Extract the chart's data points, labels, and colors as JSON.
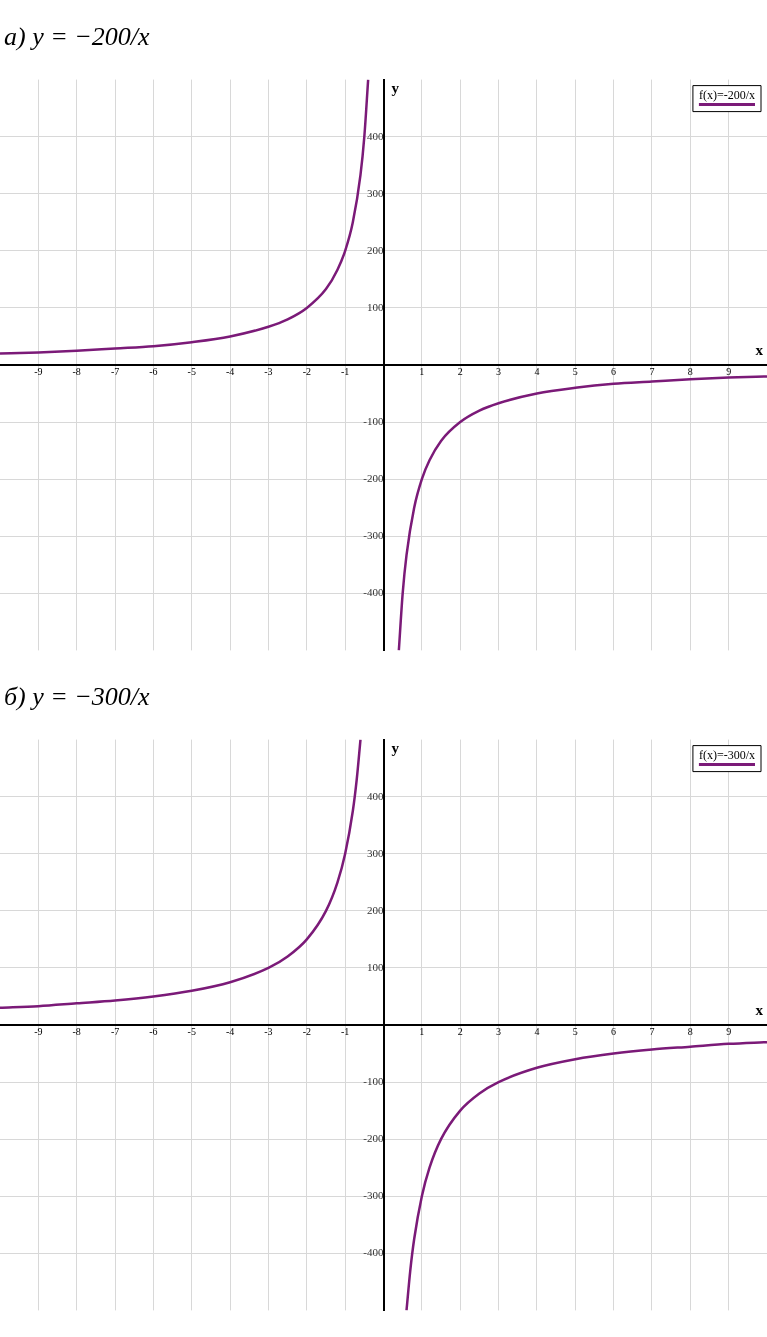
{
  "chart_data": [
    {
      "type": "line",
      "title": "а) y = −200/x",
      "xlabel": "x",
      "ylabel": "y",
      "xlim": [
        -10,
        10
      ],
      "ylim": [
        -500,
        500
      ],
      "xticks": [
        -9,
        -8,
        -7,
        -6,
        -5,
        -4,
        -3,
        -2,
        -1,
        1,
        2,
        3,
        4,
        5,
        6,
        7,
        8,
        9
      ],
      "yticks": [
        -400,
        -300,
        -200,
        -100,
        100,
        200,
        300,
        400
      ],
      "grid": true,
      "legend": "top right",
      "marker": "none",
      "line_style": "solid",
      "series": [
        {
          "name": "f(x)=-200/x",
          "color": "#7b1a78",
          "x": [
            -10,
            -9,
            -8,
            -7,
            -6,
            -5,
            -4,
            -3,
            -2.5,
            -2,
            -1.5,
            -1.2,
            -1,
            -0.8,
            -0.6,
            -0.5,
            -0.4,
            0,
            0.4,
            0.5,
            0.6,
            0.8,
            1,
            1.2,
            1.5,
            2,
            2.5,
            3,
            4,
            5,
            6,
            7,
            8,
            9,
            10
          ],
          "values": [
            20,
            22,
            25,
            29,
            33,
            40,
            50,
            67,
            80,
            100,
            133,
            167,
            200,
            250,
            333,
            400,
            500,
            null,
            -500,
            -400,
            -333,
            -250,
            -200,
            -167,
            -133,
            -100,
            -80,
            -67,
            -50,
            -40,
            -33,
            -29,
            -25,
            -22,
            -20
          ]
        }
      ]
    },
    {
      "type": "line",
      "title": "б) y = −300/x",
      "xlabel": "x",
      "ylabel": "y",
      "xlim": [
        -10,
        10
      ],
      "ylim": [
        -500,
        500
      ],
      "xticks": [
        -9,
        -8,
        -7,
        -6,
        -5,
        -4,
        -3,
        -2,
        -1,
        1,
        2,
        3,
        4,
        5,
        6,
        7,
        8,
        9
      ],
      "yticks": [
        -400,
        -300,
        -200,
        -100,
        100,
        200,
        300,
        400
      ],
      "grid": true,
      "legend": "top right",
      "marker": "none",
      "line_style": "solid",
      "series": [
        {
          "name": "f(x)=-300/x",
          "color": "#7b1a78",
          "x": [
            -10,
            -9,
            -8,
            -7,
            -6,
            -5,
            -4,
            -3,
            -2.5,
            -2,
            -1.5,
            -1.2,
            -1,
            -0.8,
            -0.7,
            -0.6,
            0,
            0.6,
            0.7,
            0.8,
            1,
            1.2,
            1.5,
            2,
            2.5,
            3,
            4,
            5,
            6,
            7,
            8,
            9,
            10
          ],
          "values": [
            30,
            33,
            38,
            43,
            50,
            60,
            75,
            100,
            120,
            150,
            200,
            250,
            300,
            375,
            429,
            500,
            null,
            -500,
            -429,
            -375,
            -300,
            -250,
            -200,
            -150,
            -120,
            -100,
            -75,
            -60,
            -50,
            -43,
            -38,
            -33,
            -30
          ]
        }
      ]
    }
  ]
}
